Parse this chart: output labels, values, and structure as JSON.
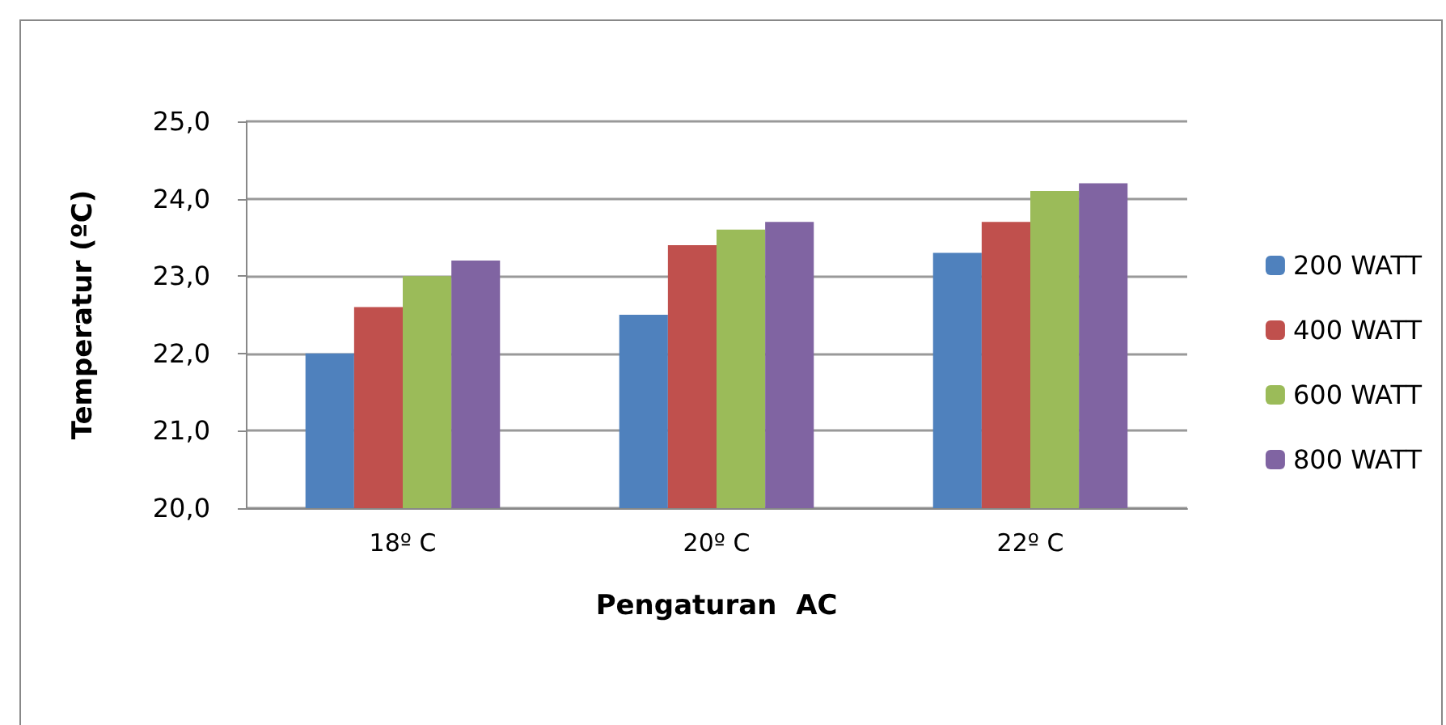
{
  "chart_data": {
    "type": "bar",
    "xlabel": "Pengaturan  AC",
    "ylabel": "Temperatur (ºC)",
    "categories": [
      "18º C",
      "20º C",
      "22º C"
    ],
    "series": [
      {
        "name": "200 WATT",
        "color": "#4f81bd",
        "values": [
          22.0,
          22.5,
          23.3
        ]
      },
      {
        "name": "400 WATT",
        "color": "#c0504d",
        "values": [
          22.6,
          23.4,
          23.7
        ]
      },
      {
        "name": "600 WATT",
        "color": "#9bbb59",
        "values": [
          23.0,
          23.6,
          24.1
        ]
      },
      {
        "name": "800 WATT",
        "color": "#8064a2",
        "values": [
          23.2,
          23.7,
          24.2
        ]
      }
    ],
    "ylim": [
      20,
      25
    ],
    "yticks": [
      {
        "value": 20,
        "label": "20,0"
      },
      {
        "value": 21,
        "label": "21,0"
      },
      {
        "value": 22,
        "label": "22,0"
      },
      {
        "value": 23,
        "label": "23,0"
      },
      {
        "value": 24,
        "label": "24,0"
      },
      {
        "value": 25,
        "label": "25,0"
      }
    ],
    "grid": "y",
    "legend": "right"
  }
}
